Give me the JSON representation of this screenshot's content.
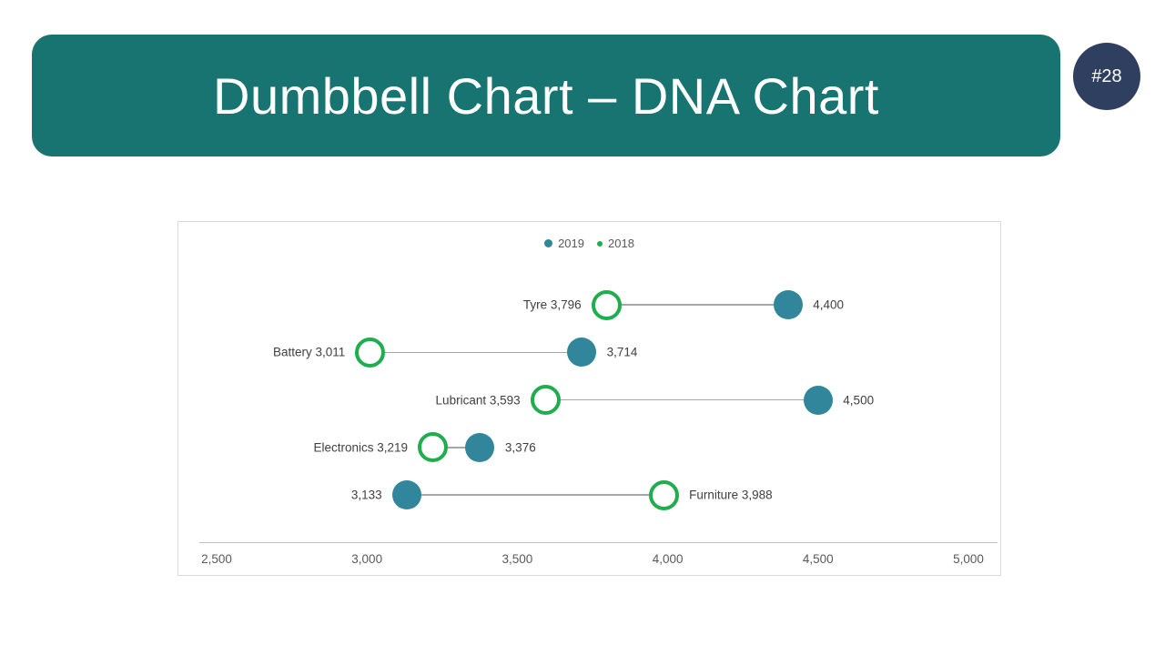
{
  "header": {
    "title": "Dumbbell Chart – DNA Chart",
    "bg_color": "#177471",
    "text_color": "#ffffff"
  },
  "badge": {
    "label": "#28",
    "bg_color": "#2e3f60",
    "text_color": "#ffffff"
  },
  "chart_data": {
    "type": "scatter",
    "variant": "dumbbell",
    "categories": [
      "Tyre",
      "Battery",
      "Lubricant",
      "Electronics",
      "Furniture"
    ],
    "series": [
      {
        "name": "2019",
        "marker": "filled-circle",
        "color": "#31869b",
        "values": [
          4400,
          3714,
          4500,
          3376,
          3133
        ]
      },
      {
        "name": "2018",
        "marker": "open-circle",
        "color": "#1fad4e",
        "values": [
          3796,
          3011,
          3593,
          3219,
          3988
        ]
      }
    ],
    "point_labels": {
      "2019": [
        "4,400",
        "3,714",
        "4,500",
        "3,376",
        "3,133"
      ],
      "2018": [
        "Tyre 3,796",
        "Battery 3,011",
        "Lubricant 3,593",
        "Electronics 3,219",
        "Furniture 3,988"
      ]
    },
    "xlim": [
      2500,
      5000
    ],
    "x_ticks": [
      2500,
      3000,
      3500,
      4000,
      4500,
      5000
    ],
    "x_tick_labels": [
      "2,500",
      "3,000",
      "3,500",
      "4,000",
      "4,500",
      "5,000"
    ],
    "legend_position": "top-center",
    "grid": false,
    "colors": {
      "connector": "#a6a6a6",
      "axis_line": "#bfbfbf",
      "tick_text": "#595959",
      "legend_text": "#595959",
      "point_label_text": "#404040",
      "panel_border": "#d9d9d9"
    }
  }
}
